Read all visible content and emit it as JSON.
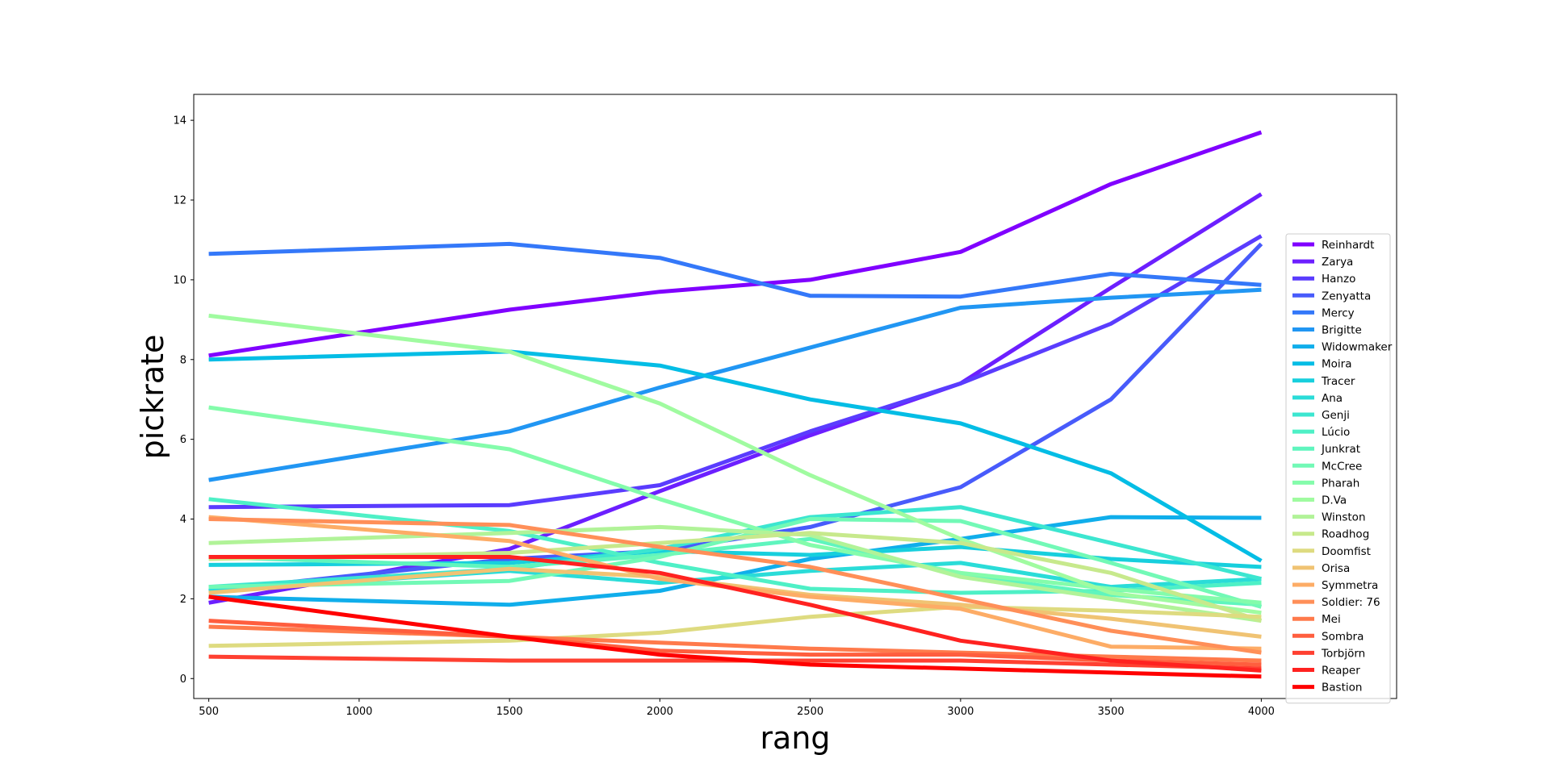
{
  "chart_data": {
    "type": "line",
    "title": "",
    "xlabel": "rang",
    "ylabel": "pickrate",
    "xlim": [
      450,
      4450
    ],
    "ylim": [
      -0.5,
      14.65
    ],
    "xticks": [
      500,
      1000,
      1500,
      2000,
      2500,
      3000,
      3500,
      4000
    ],
    "yticks": [
      0,
      2,
      4,
      6,
      8,
      10,
      12,
      14
    ],
    "grid": false,
    "legend_position": "right",
    "x": [
      500,
      1500,
      2000,
      2500,
      3000,
      3500,
      4000
    ],
    "series": [
      {
        "name": "Reinhardt",
        "color": "#8000ff",
        "values": [
          8.1,
          9.25,
          9.7,
          10.0,
          10.7,
          12.4,
          13.7
        ]
      },
      {
        "name": "Zarya",
        "color": "#6c1fff",
        "values": [
          1.9,
          3.25,
          4.7,
          6.1,
          7.4,
          9.8,
          12.15
        ]
      },
      {
        "name": "Hanzo",
        "color": "#5a3cfe",
        "values": [
          4.3,
          4.35,
          4.85,
          6.2,
          7.4,
          8.9,
          11.1
        ]
      },
      {
        "name": "Zenyatta",
        "color": "#485bfb",
        "values": [
          2.2,
          3.0,
          3.2,
          3.8,
          4.8,
          7.0,
          10.9
        ]
      },
      {
        "name": "Mercy",
        "color": "#3478f9",
        "values": [
          10.65,
          10.9,
          10.55,
          9.6,
          9.58,
          10.15,
          9.87
        ]
      },
      {
        "name": "Brigitte",
        "color": "#2196f3",
        "values": [
          4.98,
          6.2,
          7.3,
          8.3,
          9.3,
          9.55,
          9.75
        ]
      },
      {
        "name": "Widowmaker",
        "color": "#10aeeb",
        "values": [
          2.05,
          1.85,
          2.2,
          3.0,
          3.5,
          4.05,
          4.03
        ]
      },
      {
        "name": "Moira",
        "color": "#04bde5",
        "values": [
          8.0,
          8.2,
          7.85,
          7.0,
          6.4,
          5.15,
          2.95
        ]
      },
      {
        "name": "Tracer",
        "color": "#17cfdd",
        "values": [
          2.85,
          2.9,
          3.2,
          3.1,
          3.3,
          3.0,
          2.8
        ]
      },
      {
        "name": "Ana",
        "color": "#2adcd8",
        "values": [
          2.2,
          2.7,
          2.4,
          2.7,
          2.9,
          2.3,
          2.5
        ]
      },
      {
        "name": "Genji",
        "color": "#3ce6d0",
        "values": [
          2.3,
          2.75,
          3.25,
          4.05,
          4.3,
          3.4,
          2.5
        ]
      },
      {
        "name": "Lúcio",
        "color": "#4ef0c6",
        "values": [
          4.5,
          3.7,
          2.9,
          2.25,
          2.15,
          2.2,
          2.4
        ]
      },
      {
        "name": "Junkrat",
        "color": "#5ff5be",
        "values": [
          3.05,
          2.8,
          3.1,
          3.5,
          2.6,
          2.1,
          1.85
        ]
      },
      {
        "name": "McCree",
        "color": "#72f9b6",
        "values": [
          2.3,
          2.45,
          3.05,
          4.0,
          3.95,
          2.9,
          1.8
        ]
      },
      {
        "name": "Pharah",
        "color": "#84fcab",
        "values": [
          6.8,
          5.75,
          4.5,
          3.35,
          2.65,
          2.25,
          1.9
        ]
      },
      {
        "name": "D.Va",
        "color": "#a0fba0",
        "values": [
          9.1,
          8.2,
          6.9,
          5.1,
          3.5,
          2.15,
          1.65
        ]
      },
      {
        "name": "Winston",
        "color": "#b1f398",
        "values": [
          3.4,
          3.65,
          3.8,
          3.6,
          2.55,
          2.0,
          1.45
        ]
      },
      {
        "name": "Roadhog",
        "color": "#c7e98c",
        "values": [
          3.0,
          3.15,
          3.4,
          3.65,
          3.4,
          2.65,
          1.45
        ]
      },
      {
        "name": "Doomfist",
        "color": "#dedb80",
        "values": [
          0.82,
          0.95,
          1.15,
          1.55,
          1.8,
          1.7,
          1.55
        ]
      },
      {
        "name": "Orisa",
        "color": "#f0c373",
        "values": [
          2.15,
          2.75,
          2.55,
          2.1,
          1.85,
          1.5,
          1.05
        ]
      },
      {
        "name": "Symmetra",
        "color": "#fdac66",
        "values": [
          4.05,
          3.45,
          2.5,
          2.05,
          1.75,
          0.8,
          0.75
        ]
      },
      {
        "name": "Soldier: 76",
        "color": "#ff8f58",
        "values": [
          4.0,
          3.85,
          3.3,
          2.8,
          2.0,
          1.2,
          0.65
        ]
      },
      {
        "name": "Mei",
        "color": "#ff7a4b",
        "values": [
          1.3,
          1.05,
          0.9,
          0.75,
          0.65,
          0.55,
          0.45
        ]
      },
      {
        "name": "Sombra",
        "color": "#ff5e3e",
        "values": [
          1.45,
          1.05,
          0.7,
          0.6,
          0.6,
          0.45,
          0.35
        ]
      },
      {
        "name": "Torbjörn",
        "color": "#ff4031",
        "values": [
          0.55,
          0.45,
          0.45,
          0.45,
          0.45,
          0.35,
          0.25
        ]
      },
      {
        "name": "Reaper",
        "color": "#ff2220",
        "values": [
          3.05,
          3.05,
          2.65,
          1.85,
          0.95,
          0.45,
          0.2
        ]
      },
      {
        "name": "Bastion",
        "color": "#ff0000",
        "values": [
          2.05,
          1.05,
          0.6,
          0.35,
          0.25,
          0.15,
          0.05
        ]
      }
    ]
  }
}
